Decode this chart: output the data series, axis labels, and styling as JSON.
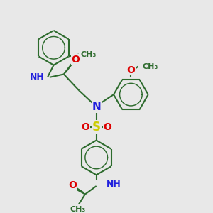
{
  "bg_color": "#e8e8e8",
  "bond_color": "#2d6b2d",
  "N_color": "#2020dd",
  "O_color": "#dd0000",
  "S_color": "#cccc00",
  "lw": 1.5,
  "fs": 9,
  "xlim": [
    -3.5,
    4.5
  ],
  "ylim": [
    -4.5,
    5.5
  ]
}
